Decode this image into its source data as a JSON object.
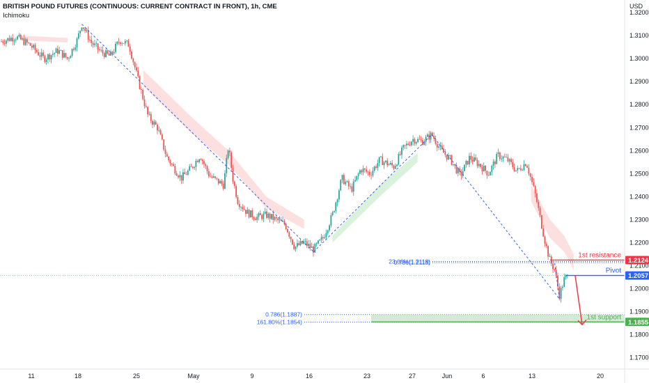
{
  "header": {
    "title": "BRITISH POUND FUTURES (CONTINUOUS: CURRENT CONTRACT IN FRONT), 1h, CME",
    "indicator": "Ichimoku"
  },
  "currency": "USD",
  "colors": {
    "up": "#26a69a",
    "down": "#ef5350",
    "resistance": "#f23645",
    "pivot": "#2962ff",
    "support": "#4caf50",
    "cloud_bear": "#fbdada",
    "cloud_bull": "#d6f0d8",
    "trendline": "#2962ff"
  },
  "chart_data": {
    "type": "candlestick",
    "symbol": "British Pound Futures",
    "timeframe": "1h",
    "ylim": [
      1.165,
      1.3255
    ],
    "y_ticks": [
      "1.3200",
      "1.3100",
      "1.3000",
      "1.2900",
      "1.2800",
      "1.2700",
      "1.2600",
      "1.2500",
      "1.2400",
      "1.2300",
      "1.2200",
      "1.2100",
      "1.2000",
      "1.1900",
      "1.1800",
      "1.1700"
    ],
    "x_ticks": [
      "11",
      "18",
      "25",
      "May",
      "9",
      "16",
      "23",
      "27",
      "Jun",
      "6",
      "13",
      "20"
    ],
    "price_path": [
      [
        0,
        1.3075
      ],
      [
        3,
        1.3095
      ],
      [
        6,
        1.306
      ],
      [
        9,
        1.3
      ],
      [
        12,
        1.3035
      ],
      [
        14,
        1.3
      ],
      [
        16,
        1.308
      ],
      [
        17,
        1.315
      ],
      [
        19,
        1.307
      ],
      [
        21,
        1.303
      ],
      [
        23,
        1.301
      ],
      [
        25,
        1.308
      ],
      [
        27,
        1.306
      ],
      [
        29,
        1.29
      ],
      [
        31,
        1.275
      ],
      [
        33,
        1.27
      ],
      [
        35,
        1.257
      ],
      [
        38,
        1.248
      ],
      [
        40,
        1.252
      ],
      [
        42,
        1.258
      ],
      [
        44,
        1.249
      ],
      [
        47,
        1.245
      ],
      [
        48,
        1.262
      ],
      [
        49,
        1.247
      ],
      [
        50,
        1.238
      ],
      [
        52,
        1.233
      ],
      [
        54,
        1.231
      ],
      [
        56,
        1.232
      ],
      [
        58,
        1.23
      ],
      [
        60,
        1.228
      ],
      [
        62,
        1.218
      ],
      [
        64,
        1.22
      ],
      [
        66,
        1.217
      ],
      [
        68,
        1.222
      ],
      [
        70,
        1.232
      ],
      [
        72,
        1.248
      ],
      [
        74,
        1.243
      ],
      [
        76,
        1.252
      ],
      [
        78,
        1.25
      ],
      [
        80,
        1.256
      ],
      [
        83,
        1.253
      ],
      [
        85,
        1.261
      ],
      [
        87,
        1.265
      ],
      [
        89,
        1.264
      ],
      [
        91,
        1.267
      ],
      [
        93,
        1.26
      ],
      [
        95,
        1.256
      ],
      [
        97,
        1.249
      ],
      [
        99,
        1.257
      ],
      [
        101,
        1.254
      ],
      [
        103,
        1.25
      ],
      [
        105,
        1.258
      ],
      [
        107,
        1.256
      ],
      [
        109,
        1.251
      ],
      [
        111,
        1.255
      ],
      [
        113,
        1.24
      ],
      [
        114,
        1.23
      ],
      [
        115,
        1.22
      ],
      [
        116,
        1.212
      ],
      [
        117,
        1.208
      ],
      [
        118,
        1.197
      ],
      [
        119,
        1.204
      ],
      [
        120,
        1.2057
      ]
    ],
    "trendlines": [
      {
        "from": [
          17,
          1.315
        ],
        "to": [
          66,
          1.216
        ]
      },
      {
        "from": [
          66,
          1.216
        ],
        "to": [
          91,
          1.267
        ]
      },
      {
        "from": [
          91,
          1.267
        ],
        "to": [
          118,
          1.1955
        ]
      },
      {
        "from": [
          117,
          1.211
        ],
        "to": [
          118,
          1.1955
        ]
      }
    ],
    "levels": [
      {
        "name": "1st resistance",
        "price": 1.2124,
        "color": "#f23645"
      },
      {
        "name": "Pivot",
        "price": 1.2057,
        "color": "#2962ff"
      },
      {
        "name": "1st support",
        "price": 1.1855,
        "color": "#4caf50"
      }
    ],
    "fib_labels": [
      {
        "text": "23.60%(1.2118)",
        "price": 1.2118
      },
      {
        "text": "0.786(1.2113)",
        "price": 1.2113
      },
      {
        "text": "0.786(1.1887)",
        "price": 1.1887
      },
      {
        "text": "161.80%(1.1854)",
        "price": 1.1854
      }
    ],
    "tags": [
      {
        "text": "1.2124",
        "price": 1.2124,
        "color": "#f23645"
      },
      {
        "text": "1.2057",
        "price": 1.2057,
        "color": "#2962ff"
      },
      {
        "text": "1.1855",
        "price": 1.1855,
        "color": "#4caf50"
      }
    ],
    "arrow": {
      "from": [
        119,
        1.2057
      ],
      "to": [
        120,
        1.1855
      ],
      "color": "#f23645"
    }
  }
}
